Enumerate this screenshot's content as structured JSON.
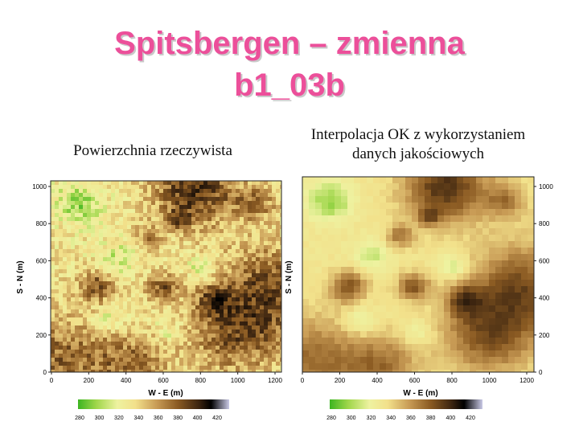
{
  "slide": {
    "title_line1": "Spitsbergen – zmienna",
    "title_line2": "b1_03b"
  },
  "left_panel": {
    "caption": "Powierzchnia rzeczywista",
    "y_axis_label": "S - N (m)",
    "x_axis_label": "W - E (m)",
    "y_ticks": [
      "0",
      "200",
      "400",
      "600",
      "800",
      "1000"
    ],
    "x_ticks": [
      "0",
      "200",
      "400",
      "600",
      "800",
      "1000",
      "1200"
    ],
    "colorbar_ticks": [
      "280",
      "300",
      "320",
      "340",
      "360",
      "380",
      "400",
      "420"
    ]
  },
  "right_panel": {
    "caption_line1": "Interpolacja OK z wykorzystaniem",
    "caption_line2": "danych jakościowych",
    "y_axis_label": "S - N (m)",
    "x_axis_label": "W - E (m)",
    "y_ticks": [
      "0",
      "200",
      "400",
      "600",
      "800",
      "1000"
    ],
    "x_ticks": [
      "0",
      "200",
      "400",
      "600",
      "800",
      "1000",
      "1200"
    ],
    "colorbar_ticks": [
      "280",
      "300",
      "320",
      "340",
      "360",
      "380",
      "400",
      "420"
    ]
  },
  "colormap": {
    "stops": [
      "#3db521",
      "#9fd64a",
      "#eef2a0",
      "#f2e08a",
      "#c89b55",
      "#8a5a22",
      "#3b2410",
      "#000000",
      "#c9c9e6"
    ]
  }
}
